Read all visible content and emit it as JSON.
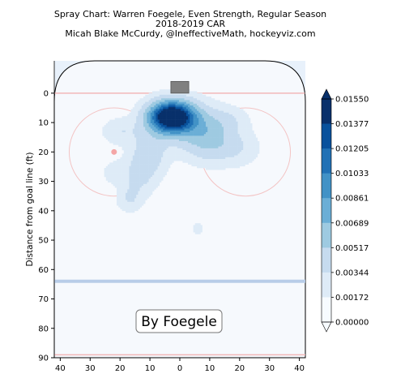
{
  "header": {
    "title_line1": "Spray Chart: Warren Foegele, Even Strength, Regular Season",
    "title_line2": "2018-2019 CAR",
    "title_line3": "Micah Blake McCurdy, @IneffectiveMath, hockeyviz.com"
  },
  "colors": {
    "rink_background": "#e8f1fb",
    "goal_line": "#f2b8b8",
    "blue_line": "#b8cde8",
    "faceoff": "#f4a6a6",
    "colormap": [
      "#f7fbff",
      "#deebf7",
      "#c6dbef",
      "#9ecae1",
      "#6baed6",
      "#4292c6",
      "#2171b5",
      "#08519c",
      "#08306b"
    ]
  },
  "chart_data": {
    "type": "heatmap",
    "title": "Spray Chart: Warren Foegele, Even Strength, Regular Season",
    "xlabel": "",
    "ylabel": "Distance from goal line (ft)",
    "xlim": [
      42,
      -42
    ],
    "ylim": [
      -11,
      90
    ],
    "x_ticks": [
      40,
      30,
      20,
      10,
      0,
      10,
      20,
      30,
      40
    ],
    "y_ticks": [
      0,
      10,
      20,
      30,
      40,
      50,
      60,
      70,
      80,
      90
    ],
    "colorbar_ticks": [
      "0.01550",
      "0.01377",
      "0.01205",
      "0.01033",
      "0.00861",
      "0.00689",
      "0.00517",
      "0.00344",
      "0.00172",
      "0.00000"
    ],
    "colorbar_range": [
      0,
      0.0155
    ],
    "legend_box": "By Foegele",
    "density_peaks": [
      {
        "x": 3,
        "y": 8,
        "value": 0.0155
      },
      {
        "x": -12,
        "y": 17,
        "value": 0.004
      },
      {
        "x": 13,
        "y": 23,
        "value": 0.0025
      },
      {
        "x": 16,
        "y": 36,
        "value": 0.0015
      },
      {
        "x": 20,
        "y": 12,
        "value": 0.0015
      },
      {
        "x": -20,
        "y": 20,
        "value": 0.0012
      },
      {
        "x": -6,
        "y": 46,
        "value": 0.001
      }
    ]
  }
}
